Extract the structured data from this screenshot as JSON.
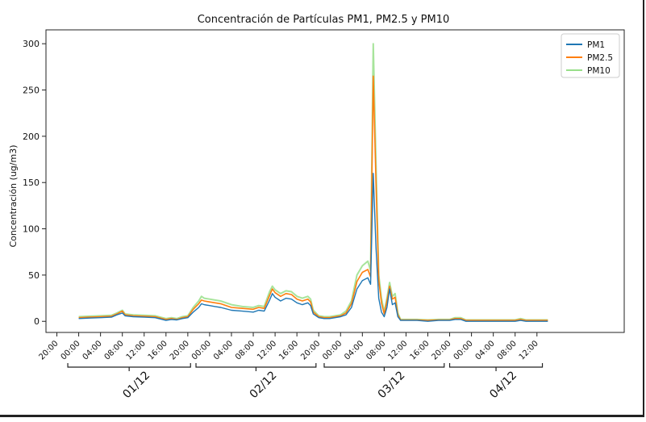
{
  "chart_data": {
    "type": "line",
    "title": "Concentración de Partículas PM1, PM2.5 y PM10",
    "xlabel": "",
    "ylabel": "Concentración (ug/m3)",
    "ylim": [
      -12,
      315
    ],
    "yticks": [
      0,
      50,
      100,
      150,
      200,
      250,
      300
    ],
    "xlim": [
      -6,
      100
    ],
    "x_unit": "hours since 00:00 01/12",
    "xticks": [
      {
        "h": -4,
        "label": "20:00"
      },
      {
        "h": 0,
        "label": "00:00"
      },
      {
        "h": 4,
        "label": "04:00"
      },
      {
        "h": 8,
        "label": "08:00"
      },
      {
        "h": 12,
        "label": "12:00"
      },
      {
        "h": 16,
        "label": "16:00"
      },
      {
        "h": 20,
        "label": "20:00"
      },
      {
        "h": 24,
        "label": "00:00"
      },
      {
        "h": 28,
        "label": "04:00"
      },
      {
        "h": 32,
        "label": "08:00"
      },
      {
        "h": 36,
        "label": "12:00"
      },
      {
        "h": 40,
        "label": "16:00"
      },
      {
        "h": 44,
        "label": "20:00"
      },
      {
        "h": 48,
        "label": "00:00"
      },
      {
        "h": 52,
        "label": "04:00"
      },
      {
        "h": 56,
        "label": "08:00"
      },
      {
        "h": 60,
        "label": "12:00"
      },
      {
        "h": 64,
        "label": "16:00"
      },
      {
        "h": 68,
        "label": "20:00"
      },
      {
        "h": 72,
        "label": "00:00"
      },
      {
        "h": 76,
        "label": "04:00"
      },
      {
        "h": 80,
        "label": "08:00"
      },
      {
        "h": 84,
        "label": "12:00"
      }
    ],
    "day_groups": [
      {
        "label": "01/12",
        "start": -2,
        "end": 20.5
      },
      {
        "label": "02/12",
        "start": 21.5,
        "end": 43.5
      },
      {
        "label": "03/12",
        "start": 45,
        "end": 67
      },
      {
        "label": "04/12",
        "start": 68,
        "end": 85
      }
    ],
    "legend": {
      "position": "top-right"
    },
    "grid": false,
    "series": [
      {
        "name": "PM1",
        "color": "#1f77b4",
        "points": [
          [
            0,
            3
          ],
          [
            2,
            3.5
          ],
          [
            4,
            4
          ],
          [
            6,
            4.5
          ],
          [
            7,
            7
          ],
          [
            8,
            9
          ],
          [
            8.5,
            6
          ],
          [
            10,
            5
          ],
          [
            12,
            4.5
          ],
          [
            14,
            4
          ],
          [
            16,
            1
          ],
          [
            17,
            2
          ],
          [
            18,
            1.5
          ],
          [
            19,
            3
          ],
          [
            20,
            4
          ],
          [
            21,
            10
          ],
          [
            22,
            15
          ],
          [
            22.5,
            19
          ],
          [
            23,
            18
          ],
          [
            24,
            17
          ],
          [
            25,
            16
          ],
          [
            26,
            15
          ],
          [
            28,
            12
          ],
          [
            30,
            11
          ],
          [
            32,
            10
          ],
          [
            33,
            12
          ],
          [
            34,
            11
          ],
          [
            35,
            23
          ],
          [
            35.5,
            30
          ],
          [
            36,
            26
          ],
          [
            37,
            22
          ],
          [
            38,
            25
          ],
          [
            39,
            24
          ],
          [
            40,
            20
          ],
          [
            41,
            18
          ],
          [
            42,
            20
          ],
          [
            42.5,
            17
          ],
          [
            43,
            8
          ],
          [
            44,
            4
          ],
          [
            45,
            3
          ],
          [
            46,
            3
          ],
          [
            47,
            4
          ],
          [
            48,
            5
          ],
          [
            49,
            7
          ],
          [
            50,
            15
          ],
          [
            51,
            35
          ],
          [
            52,
            44
          ],
          [
            53,
            47
          ],
          [
            53.5,
            40
          ],
          [
            54,
            160
          ],
          [
            54.5,
            80
          ],
          [
            55,
            25
          ],
          [
            55.5,
            10
          ],
          [
            56,
            5
          ],
          [
            56.5,
            15
          ],
          [
            57,
            35
          ],
          [
            57.5,
            18
          ],
          [
            58,
            20
          ],
          [
            58.5,
            5
          ],
          [
            59,
            1
          ],
          [
            60,
            1
          ],
          [
            62,
            1
          ],
          [
            64,
            0
          ],
          [
            66,
            1
          ],
          [
            67,
            1
          ],
          [
            68,
            1
          ],
          [
            69,
            2
          ],
          [
            70,
            2
          ],
          [
            71,
            0
          ],
          [
            72,
            0
          ],
          [
            74,
            0
          ],
          [
            76,
            0
          ],
          [
            78,
            0
          ],
          [
            80,
            0
          ],
          [
            81,
            1
          ],
          [
            82,
            0
          ],
          [
            84,
            0
          ],
          [
            86,
            0
          ]
        ]
      },
      {
        "name": "PM2.5",
        "color": "#ff7f0e",
        "points": [
          [
            0,
            4
          ],
          [
            2,
            4.5
          ],
          [
            4,
            5
          ],
          [
            6,
            5.5
          ],
          [
            7,
            8
          ],
          [
            8,
            11
          ],
          [
            8.5,
            7
          ],
          [
            10,
            6
          ],
          [
            12,
            5.5
          ],
          [
            14,
            5
          ],
          [
            16,
            2
          ],
          [
            17,
            3
          ],
          [
            18,
            2
          ],
          [
            19,
            4
          ],
          [
            20,
            5
          ],
          [
            21,
            13
          ],
          [
            22,
            19
          ],
          [
            22.5,
            23
          ],
          [
            23,
            22
          ],
          [
            24,
            21
          ],
          [
            25,
            20
          ],
          [
            26,
            19
          ],
          [
            28,
            15
          ],
          [
            30,
            14
          ],
          [
            32,
            13
          ],
          [
            33,
            15
          ],
          [
            34,
            14
          ],
          [
            35,
            28
          ],
          [
            35.5,
            35
          ],
          [
            36,
            31
          ],
          [
            37,
            27
          ],
          [
            38,
            30
          ],
          [
            39,
            29
          ],
          [
            40,
            24
          ],
          [
            41,
            22
          ],
          [
            42,
            24
          ],
          [
            42.5,
            21
          ],
          [
            43,
            10
          ],
          [
            44,
            5
          ],
          [
            45,
            4
          ],
          [
            46,
            4
          ],
          [
            47,
            5
          ],
          [
            48,
            6
          ],
          [
            49,
            9
          ],
          [
            50,
            19
          ],
          [
            51,
            43
          ],
          [
            52,
            53
          ],
          [
            53,
            56
          ],
          [
            53.5,
            48
          ],
          [
            54,
            265
          ],
          [
            54.5,
            150
          ],
          [
            55,
            45
          ],
          [
            55.5,
            20
          ],
          [
            56,
            8
          ],
          [
            56.5,
            22
          ],
          [
            57,
            38
          ],
          [
            57.5,
            24
          ],
          [
            58,
            26
          ],
          [
            58.5,
            7
          ],
          [
            59,
            1.5
          ],
          [
            60,
            1.5
          ],
          [
            62,
            1.5
          ],
          [
            64,
            1
          ],
          [
            66,
            1.5
          ],
          [
            67,
            1.5
          ],
          [
            68,
            1.5
          ],
          [
            69,
            3
          ],
          [
            70,
            3
          ],
          [
            71,
            1
          ],
          [
            72,
            1
          ],
          [
            74,
            1
          ],
          [
            76,
            1
          ],
          [
            78,
            1
          ],
          [
            80,
            1
          ],
          [
            81,
            2
          ],
          [
            82,
            1
          ],
          [
            84,
            1
          ],
          [
            86,
            1
          ]
        ]
      },
      {
        "name": "PM10",
        "color": "#98df8a",
        "points": [
          [
            0,
            5
          ],
          [
            2,
            5.5
          ],
          [
            4,
            6
          ],
          [
            6,
            6.5
          ],
          [
            7,
            9
          ],
          [
            8,
            12
          ],
          [
            8.5,
            8
          ],
          [
            10,
            7
          ],
          [
            12,
            6.5
          ],
          [
            14,
            6
          ],
          [
            16,
            3
          ],
          [
            17,
            4
          ],
          [
            18,
            3
          ],
          [
            19,
            5
          ],
          [
            20,
            6
          ],
          [
            21,
            15
          ],
          [
            22,
            22
          ],
          [
            22.5,
            27
          ],
          [
            23,
            25
          ],
          [
            24,
            24
          ],
          [
            25,
            23
          ],
          [
            26,
            22
          ],
          [
            28,
            18
          ],
          [
            30,
            16
          ],
          [
            32,
            15
          ],
          [
            33,
            17
          ],
          [
            34,
            16
          ],
          [
            35,
            32
          ],
          [
            35.5,
            38
          ],
          [
            36,
            34
          ],
          [
            37,
            30
          ],
          [
            38,
            33
          ],
          [
            39,
            32
          ],
          [
            40,
            27
          ],
          [
            41,
            25
          ],
          [
            42,
            27
          ],
          [
            42.5,
            24
          ],
          [
            43,
            12
          ],
          [
            44,
            6
          ],
          [
            45,
            5
          ],
          [
            46,
            5
          ],
          [
            47,
            6
          ],
          [
            48,
            7
          ],
          [
            49,
            11
          ],
          [
            50,
            22
          ],
          [
            51,
            50
          ],
          [
            52,
            60
          ],
          [
            53,
            65
          ],
          [
            53.5,
            55
          ],
          [
            54,
            300
          ],
          [
            54.5,
            170
          ],
          [
            55,
            50
          ],
          [
            55.5,
            25
          ],
          [
            56,
            10
          ],
          [
            56.5,
            25
          ],
          [
            57,
            42
          ],
          [
            57.5,
            27
          ],
          [
            58,
            30
          ],
          [
            58.5,
            9
          ],
          [
            59,
            2
          ],
          [
            60,
            2
          ],
          [
            62,
            2
          ],
          [
            64,
            1.5
          ],
          [
            66,
            2
          ],
          [
            67,
            2
          ],
          [
            68,
            2
          ],
          [
            69,
            4
          ],
          [
            70,
            4
          ],
          [
            71,
            1.5
          ],
          [
            72,
            1.5
          ],
          [
            74,
            1.5
          ],
          [
            76,
            1.5
          ],
          [
            78,
            1.5
          ],
          [
            80,
            1.5
          ],
          [
            81,
            3
          ],
          [
            82,
            1.5
          ],
          [
            84,
            1.5
          ],
          [
            86,
            1.5
          ]
        ]
      }
    ]
  }
}
